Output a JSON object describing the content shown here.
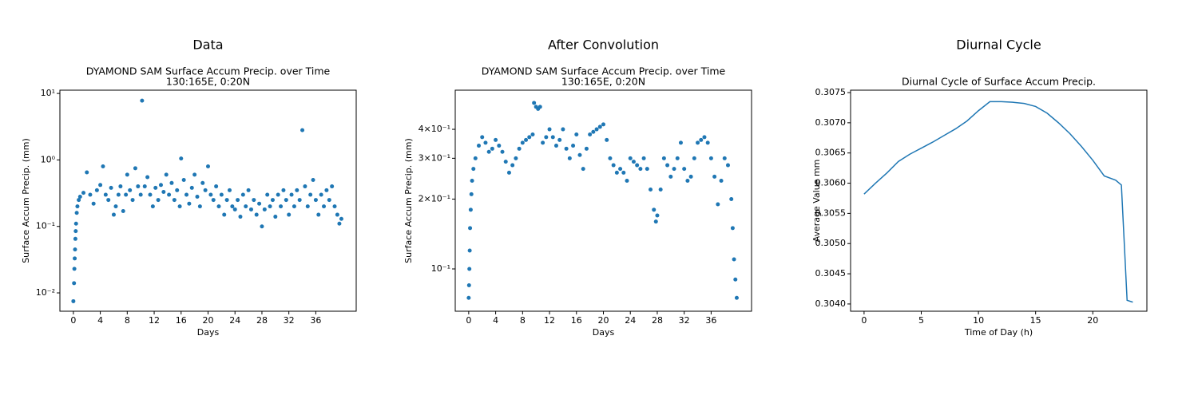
{
  "chart_data": [
    {
      "type": "scatter",
      "heading": "Data",
      "title": "DYAMOND SAM Surface Accum Precip. over Time",
      "subtitle": "130:165E, 0:20N",
      "xlabel": "Days",
      "ylabel": "Surface Accum Precip. (mm)",
      "color": "#1f77b4",
      "ylog": true,
      "xlim": [
        -2.0,
        42.0
      ],
      "xticks": [
        0,
        4,
        8,
        12,
        16,
        20,
        24,
        28,
        32,
        36
      ],
      "ylim": [
        0.0053,
        11.2
      ],
      "yticks": [
        {
          "value": 0.01,
          "label": "10⁻²"
        },
        {
          "value": 0.1,
          "label": "10⁻¹"
        },
        {
          "value": 1,
          "label": "10⁰"
        },
        {
          "value": 10,
          "label": "10¹"
        }
      ],
      "x": [
        0,
        0.1,
        0.15,
        0.2,
        0.25,
        0.3,
        0.35,
        0.4,
        0.5,
        0.6,
        0.8,
        1,
        1.5,
        2,
        2.5,
        3,
        3.5,
        4,
        4.4,
        4.8,
        5.2,
        5.6,
        6,
        6.3,
        6.7,
        7,
        7.4,
        7.8,
        8,
        8.4,
        8.8,
        9.2,
        9.6,
        10,
        10.2,
        10.6,
        11,
        11.4,
        11.8,
        12.2,
        12.6,
        13,
        13.4,
        13.8,
        14.2,
        14.6,
        15,
        15.4,
        15.8,
        16,
        16.4,
        16.8,
        17.2,
        17.6,
        18,
        18.4,
        18.8,
        19.2,
        19.6,
        20,
        20.4,
        20.8,
        21.2,
        21.6,
        22,
        22.4,
        22.8,
        23.2,
        23.6,
        24,
        24.4,
        24.8,
        25.2,
        25.6,
        26,
        26.4,
        26.8,
        27.2,
        27.6,
        28,
        28.4,
        28.8,
        29.2,
        29.6,
        30,
        30.4,
        30.8,
        31.2,
        31.6,
        32,
        32.4,
        32.8,
        33.2,
        33.6,
        34,
        34.4,
        34.8,
        35.2,
        35.6,
        36,
        36.4,
        36.8,
        37.2,
        37.6,
        38,
        38.4,
        38.8,
        39.2,
        39.5,
        39.8
      ],
      "values": [
        0.0075,
        0.014,
        0.023,
        0.033,
        0.045,
        0.065,
        0.085,
        0.11,
        0.16,
        0.2,
        0.25,
        0.28,
        0.32,
        0.65,
        0.3,
        0.22,
        0.35,
        0.42,
        0.8,
        0.3,
        0.25,
        0.38,
        0.15,
        0.2,
        0.3,
        0.4,
        0.17,
        0.3,
        0.6,
        0.35,
        0.25,
        0.75,
        0.4,
        0.3,
        7.8,
        0.4,
        0.55,
        0.3,
        0.2,
        0.38,
        0.25,
        0.42,
        0.33,
        0.6,
        0.3,
        0.45,
        0.25,
        0.35,
        0.2,
        1.05,
        0.5,
        0.3,
        0.22,
        0.38,
        0.6,
        0.28,
        0.2,
        0.45,
        0.35,
        0.8,
        0.3,
        0.25,
        0.4,
        0.2,
        0.3,
        0.15,
        0.25,
        0.35,
        0.2,
        0.18,
        0.25,
        0.14,
        0.3,
        0.2,
        0.35,
        0.18,
        0.25,
        0.15,
        0.22,
        0.1,
        0.18,
        0.3,
        0.2,
        0.25,
        0.14,
        0.3,
        0.2,
        0.35,
        0.25,
        0.15,
        0.3,
        0.2,
        0.35,
        0.25,
        2.8,
        0.4,
        0.2,
        0.3,
        0.5,
        0.25,
        0.15,
        0.3,
        0.2,
        0.35,
        0.25,
        0.4,
        0.2,
        0.15,
        0.11,
        0.13
      ]
    },
    {
      "type": "scatter",
      "heading": "After Convolution",
      "title": "DYAMOND SAM Surface Accum Precip. over Time",
      "subtitle": "130:165E, 0:20N",
      "xlabel": "Days",
      "ylabel": "Surface Accum Precip. (mm)",
      "color": "#1f77b4",
      "ylog": true,
      "xlim": [
        -2.0,
        42.0
      ],
      "xticks": [
        0,
        4,
        8,
        12,
        16,
        20,
        24,
        28,
        32,
        36
      ],
      "ylim": [
        0.0657,
        0.59
      ],
      "yticks": [
        {
          "value": 0.1,
          "label": "10⁻¹"
        },
        {
          "value": 0.2,
          "label": "2×10⁻¹"
        },
        {
          "value": 0.3,
          "label": "3×10⁻¹"
        },
        {
          "value": 0.4,
          "label": "4×10⁻¹"
        }
      ],
      "x": [
        0,
        0.05,
        0.1,
        0.15,
        0.2,
        0.3,
        0.4,
        0.5,
        0.7,
        1,
        1.5,
        2,
        2.5,
        3,
        3.5,
        4,
        4.5,
        5,
        5.5,
        6,
        6.5,
        7,
        7.5,
        8,
        8.5,
        9,
        9.5,
        9.7,
        10,
        10.3,
        10.6,
        11,
        11.5,
        12,
        12.5,
        13,
        13.5,
        14,
        14.5,
        15,
        15.5,
        16,
        16.5,
        17,
        17.5,
        18,
        18.5,
        19,
        19.5,
        20,
        20.5,
        21,
        21.5,
        22,
        22.5,
        23,
        23.5,
        24,
        24.5,
        25,
        25.5,
        26,
        26.5,
        27,
        27.5,
        27.8,
        28,
        28.5,
        29,
        29.5,
        30,
        30.5,
        31,
        31.5,
        32,
        32.5,
        33,
        33.5,
        34,
        34.5,
        35,
        35.5,
        36,
        36.5,
        37,
        37.5,
        38,
        38.5,
        39,
        39.2,
        39.4,
        39.6,
        39.8
      ],
      "values": [
        0.075,
        0.085,
        0.1,
        0.12,
        0.15,
        0.18,
        0.21,
        0.24,
        0.27,
        0.3,
        0.34,
        0.37,
        0.35,
        0.32,
        0.33,
        0.36,
        0.34,
        0.32,
        0.29,
        0.26,
        0.28,
        0.3,
        0.33,
        0.35,
        0.36,
        0.37,
        0.38,
        0.52,
        0.5,
        0.49,
        0.5,
        0.35,
        0.37,
        0.4,
        0.37,
        0.34,
        0.36,
        0.4,
        0.33,
        0.3,
        0.34,
        0.38,
        0.31,
        0.27,
        0.33,
        0.38,
        0.39,
        0.4,
        0.41,
        0.42,
        0.36,
        0.3,
        0.28,
        0.26,
        0.27,
        0.26,
        0.24,
        0.3,
        0.29,
        0.28,
        0.27,
        0.3,
        0.27,
        0.22,
        0.18,
        0.16,
        0.17,
        0.22,
        0.3,
        0.28,
        0.25,
        0.27,
        0.3,
        0.35,
        0.27,
        0.24,
        0.25,
        0.3,
        0.35,
        0.36,
        0.37,
        0.35,
        0.3,
        0.25,
        0.19,
        0.24,
        0.3,
        0.28,
        0.2,
        0.15,
        0.11,
        0.09,
        0.075
      ]
    },
    {
      "type": "line",
      "heading": "Diurnal Cycle",
      "title": "Diurnal Cycle of Surface Accum Precip.",
      "xlabel": "Time of Day (h)",
      "ylabel": "Average Value mm",
      "color": "#1f77b4",
      "ylog": false,
      "xlim": [
        -1.18,
        24.73
      ],
      "xticks": [
        0,
        5,
        10,
        15,
        20
      ],
      "ylim": [
        0.30388,
        0.30754
      ],
      "yticks": [
        {
          "value": 0.304,
          "label": "0.3040"
        },
        0.3045,
        {
          "value": 0.305,
          "label": "0.3050"
        },
        0.3055,
        {
          "value": 0.306,
          "label": "0.3060"
        },
        0.3065,
        {
          "value": 0.307,
          "label": "0.3070"
        },
        0.3075
      ],
      "x": [
        0,
        1,
        2,
        3,
        4,
        5,
        6,
        7,
        8,
        9,
        10,
        11,
        12,
        13,
        14,
        15,
        16,
        17,
        18,
        19,
        20,
        21,
        22,
        22.5,
        23,
        23.5
      ],
      "values": [
        0.30582,
        0.306,
        0.30617,
        0.30636,
        0.30648,
        0.30658,
        0.30668,
        0.30679,
        0.3069,
        0.30703,
        0.3072,
        0.30735,
        0.30735,
        0.30734,
        0.30732,
        0.30727,
        0.30716,
        0.307,
        0.30682,
        0.30661,
        0.30638,
        0.30612,
        0.30605,
        0.30597,
        0.30406,
        0.30403
      ]
    }
  ]
}
